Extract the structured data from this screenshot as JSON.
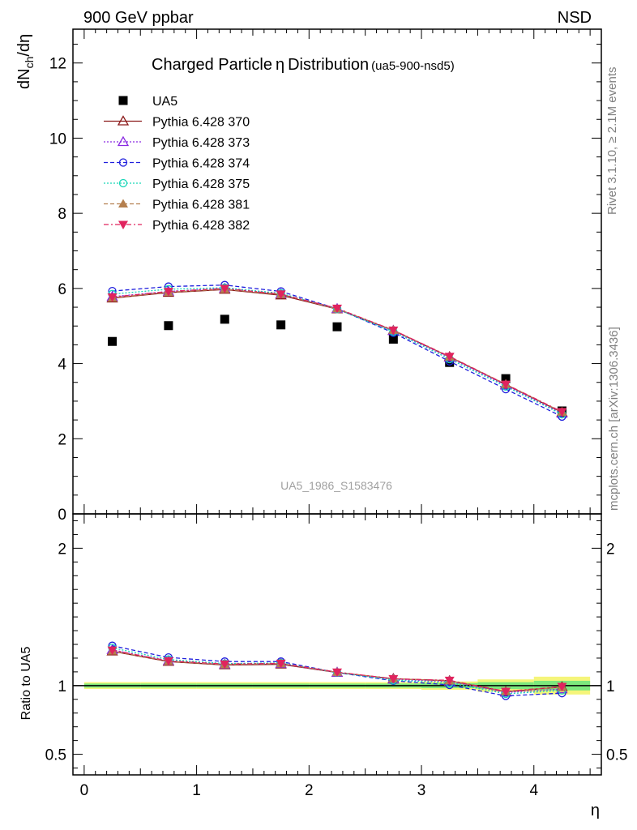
{
  "header": {
    "left": "900 GeV ppbar",
    "right": "NSD",
    "side_top": "Rivet 3.1.10, ≥ 2.1M events",
    "side_bottom": "mcplots.cern.ch [arXiv:1306.3436]",
    "watermark": "UA5_1986_S1583476"
  },
  "chart_data": [
    {
      "type": "scatter",
      "title": "Charged Particle",
      "title_symbol": "η",
      "title_suffix": "Distribution",
      "title_tag": "(ua5-900-nsd5)",
      "ylabel": "dN_ch/dη",
      "ylabel_main": "dN",
      "ylabel_sub": "ch",
      "ylabel_tail": "/dη",
      "xlim": [
        -0.1,
        4.6
      ],
      "ylim": [
        0,
        12.9
      ],
      "yticks": [
        "0",
        "2",
        "4",
        "6",
        "8",
        "10",
        "12"
      ],
      "legend_position": "top-left",
      "x": [
        0.25,
        0.75,
        1.25,
        1.75,
        2.25,
        2.75,
        3.25,
        3.75,
        4.25
      ],
      "series": [
        {
          "name": "UA5",
          "color": "#000000",
          "marker": "square",
          "line": "none",
          "values": [
            4.59,
            5.01,
            5.18,
            5.03,
            4.98,
            4.65,
            4.03,
            3.6,
            2.74
          ]
        },
        {
          "name": "Pythia 6.428 370",
          "color": "#8b1a1a",
          "marker": "triangle-open",
          "line": "solid",
          "values": [
            5.74,
            5.89,
            5.97,
            5.82,
            5.45,
            4.88,
            4.18,
            3.44,
            2.7
          ]
        },
        {
          "name": "Pythia 6.428 373",
          "color": "#8a2be2",
          "marker": "triangle-open",
          "line": "dotted",
          "values": [
            5.78,
            5.92,
            6.0,
            5.85,
            5.46,
            4.87,
            4.16,
            3.42,
            2.67
          ]
        },
        {
          "name": "Pythia 6.428 374",
          "color": "#1f1fdd",
          "marker": "circle-open",
          "line": "dashed",
          "values": [
            5.93,
            6.05,
            6.09,
            5.92,
            5.46,
            4.82,
            4.06,
            3.32,
            2.59
          ]
        },
        {
          "name": "Pythia 6.428 375",
          "color": "#19d6b8",
          "marker": "circle-open",
          "line": "dotted",
          "values": [
            5.85,
            5.98,
            6.02,
            5.87,
            5.45,
            4.85,
            4.12,
            3.39,
            2.65
          ]
        },
        {
          "name": "Pythia 6.428 381",
          "color": "#b5804f",
          "marker": "triangle-filled",
          "line": "dashed",
          "values": [
            5.75,
            5.9,
            5.98,
            5.84,
            5.46,
            4.89,
            4.18,
            3.45,
            2.71
          ]
        },
        {
          "name": "Pythia 6.428 382",
          "color": "#e0245e",
          "marker": "triangle-down-filled",
          "line": "dashdot",
          "values": [
            5.77,
            5.92,
            6.0,
            5.85,
            5.47,
            4.89,
            4.19,
            3.45,
            2.72
          ]
        }
      ]
    },
    {
      "type": "line",
      "ylabel": "Ratio to UA5",
      "xlabel": "η",
      "xlim": [
        -0.1,
        4.6
      ],
      "ylim": [
        0.35,
        2.25
      ],
      "xticks": [
        "0",
        "1",
        "2",
        "3",
        "4"
      ],
      "yticks": [
        "0.5",
        "1",
        "2"
      ],
      "reference": 1.0,
      "uncertainty_bands": {
        "colors": {
          "outer": "#f5f57a",
          "inner": "#7de87d"
        },
        "bins": [
          {
            "lo": 0.0,
            "hi": 0.5,
            "outer": [
              0.975,
              1.025
            ],
            "inner": [
              0.985,
              1.015
            ]
          },
          {
            "lo": 0.5,
            "hi": 1.0,
            "outer": [
              0.975,
              1.025
            ],
            "inner": [
              0.985,
              1.015
            ]
          },
          {
            "lo": 1.0,
            "hi": 1.5,
            "outer": [
              0.975,
              1.025
            ],
            "inner": [
              0.985,
              1.015
            ]
          },
          {
            "lo": 1.5,
            "hi": 2.0,
            "outer": [
              0.975,
              1.025
            ],
            "inner": [
              0.985,
              1.015
            ]
          },
          {
            "lo": 2.0,
            "hi": 2.5,
            "outer": [
              0.975,
              1.025
            ],
            "inner": [
              0.985,
              1.015
            ]
          },
          {
            "lo": 2.5,
            "hi": 3.0,
            "outer": [
              0.975,
              1.025
            ],
            "inner": [
              0.985,
              1.015
            ]
          },
          {
            "lo": 3.0,
            "hi": 3.5,
            "outer": [
              0.97,
              1.03
            ],
            "inner": [
              0.982,
              1.018
            ]
          },
          {
            "lo": 3.5,
            "hi": 4.0,
            "outer": [
              0.955,
              1.045
            ],
            "inner": [
              0.975,
              1.025
            ]
          },
          {
            "lo": 4.0,
            "hi": 4.5,
            "outer": [
              0.935,
              1.065
            ],
            "inner": [
              0.965,
              1.035
            ]
          }
        ]
      },
      "x": [
        0.25,
        0.75,
        1.25,
        1.75,
        2.25,
        2.75,
        3.25,
        3.75,
        4.25
      ],
      "series": [
        {
          "name": "Pythia 6.428 370",
          "values": [
            1.25,
            1.175,
            1.15,
            1.155,
            1.095,
            1.05,
            1.035,
            0.955,
            0.99
          ]
        },
        {
          "name": "Pythia 6.428 373",
          "values": [
            1.26,
            1.18,
            1.155,
            1.16,
            1.095,
            1.045,
            1.03,
            0.95,
            0.975
          ]
        },
        {
          "name": "Pythia 6.428 374",
          "values": [
            1.29,
            1.205,
            1.175,
            1.175,
            1.095,
            1.035,
            1.005,
            0.925,
            0.945
          ]
        },
        {
          "name": "Pythia 6.428 375",
          "values": [
            1.275,
            1.19,
            1.16,
            1.165,
            1.095,
            1.04,
            1.02,
            0.94,
            0.965
          ]
        },
        {
          "name": "Pythia 6.428 381",
          "values": [
            1.252,
            1.177,
            1.153,
            1.16,
            1.097,
            1.05,
            1.035,
            0.958,
            0.988
          ]
        },
        {
          "name": "Pythia 6.428 382",
          "values": [
            1.258,
            1.18,
            1.157,
            1.162,
            1.098,
            1.05,
            1.038,
            0.958,
            0.993
          ]
        }
      ]
    }
  ]
}
